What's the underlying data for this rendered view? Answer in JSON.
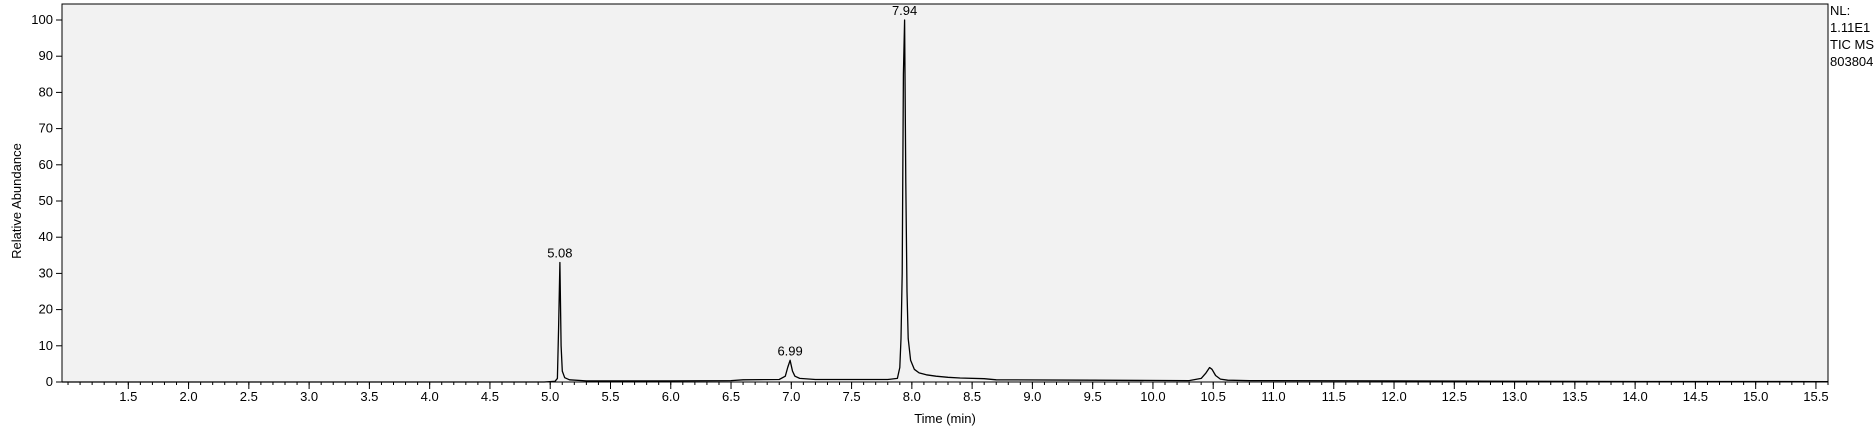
{
  "chart_data": {
    "type": "line",
    "title": "",
    "xlabel": "Time (min)",
    "ylabel": "Relative Abundance",
    "xlim": [
      0.95,
      15.6
    ],
    "ylim": [
      0,
      100
    ],
    "x_ticks": [
      "1.5",
      "2.0",
      "2.5",
      "3.0",
      "3.5",
      "4.0",
      "4.5",
      "5.0",
      "5.5",
      "6.0",
      "6.5",
      "7.0",
      "7.5",
      "8.0",
      "8.5",
      "9.0",
      "9.5",
      "10.0",
      "10.5",
      "11.0",
      "11.5",
      "12.0",
      "12.5",
      "13.0",
      "13.5",
      "14.0",
      "14.5",
      "15.0",
      "15.5"
    ],
    "y_ticks": [
      "0",
      "10",
      "20",
      "30",
      "40",
      "50",
      "60",
      "70",
      "80",
      "90",
      "100"
    ],
    "grid": false,
    "colors": {
      "plot_background": "#f2f2f2",
      "trace": "#000000"
    },
    "peak_labels": [
      {
        "x": 5.08,
        "y": 33,
        "label": "5.08"
      },
      {
        "x": 6.99,
        "y": 6,
        "label": "6.99"
      },
      {
        "x": 7.94,
        "y": 100,
        "label": "7.94"
      }
    ],
    "series": [
      {
        "x": [
          0.95,
          4.95,
          5.04,
          5.06,
          5.07,
          5.08,
          5.09,
          5.1,
          5.12,
          5.16,
          5.3,
          6.0,
          6.5,
          6.6,
          6.9,
          6.95,
          6.97,
          6.99,
          7.01,
          7.03,
          7.07,
          7.2,
          7.8,
          7.88,
          7.9,
          7.91,
          7.92,
          7.93,
          7.94,
          7.95,
          7.96,
          7.97,
          7.99,
          8.02,
          8.06,
          8.12,
          8.2,
          8.3,
          8.4,
          8.6,
          8.7,
          9.5,
          10.3,
          10.4,
          10.44,
          10.47,
          10.49,
          10.52,
          10.56,
          10.62,
          10.8,
          12.0,
          13.0,
          14.0,
          15.6
        ],
        "y": [
          0,
          0,
          0.2,
          1,
          15,
          33,
          10,
          3,
          1.2,
          0.6,
          0.3,
          0.3,
          0.4,
          0.6,
          0.7,
          1.6,
          4,
          6,
          3,
          1.6,
          1,
          0.7,
          0.7,
          1,
          4,
          12,
          30,
          85,
          100,
          55,
          25,
          12,
          6,
          3.5,
          2.5,
          2,
          1.6,
          1.3,
          1.1,
          0.9,
          0.6,
          0.5,
          0.4,
          1,
          2.5,
          4,
          3.5,
          1.8,
          0.8,
          0.5,
          0.4,
          0.3,
          0.2,
          0.15,
          0.1
        ]
      }
    ]
  },
  "info_panel": {
    "line1": "NL:",
    "line2": "1.11E1",
    "line3": "TIC  MS",
    "line4": "803804"
  }
}
